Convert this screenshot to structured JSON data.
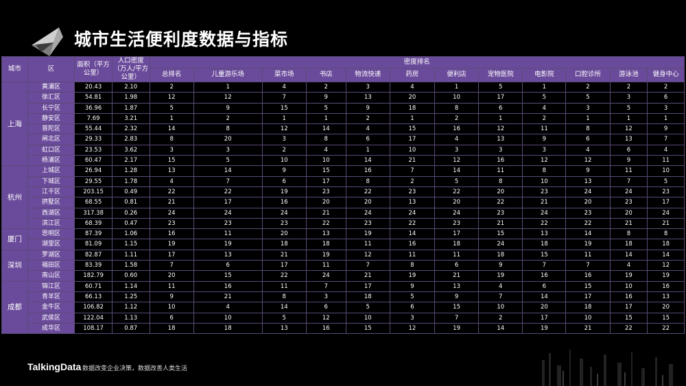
{
  "title": "城市生活便利度数据与指标",
  "header": {
    "city": "城市",
    "district": "区",
    "area": "面积（平方公里）",
    "density": "人口密度（万人/平方公里）",
    "rank_group": "密度排名",
    "rank_cols": [
      "总排名",
      "儿童游乐场",
      "菜市场",
      "书店",
      "物流快递",
      "药房",
      "便利店",
      "宠物医院",
      "电影院",
      "口腔诊所",
      "游泳池",
      "健身中心"
    ]
  },
  "groups": [
    {
      "city": "上海",
      "rows": [
        {
          "district": "黄浦区",
          "area": "20.43",
          "density": "2.10",
          "ranks": [
            "2",
            "1",
            "4",
            "2",
            "3",
            "4",
            "1",
            "5",
            "1",
            "2",
            "2",
            "2"
          ]
        },
        {
          "district": "徐汇区",
          "area": "54.81",
          "density": "1.98",
          "ranks": [
            "12",
            "12",
            "7",
            "9",
            "13",
            "20",
            "10",
            "17",
            "5",
            "5",
            "3",
            "6"
          ]
        },
        {
          "district": "长宁区",
          "area": "36.96",
          "density": "1.87",
          "ranks": [
            "5",
            "9",
            "15",
            "5",
            "9",
            "18",
            "8",
            "6",
            "4",
            "3",
            "5",
            "3"
          ]
        },
        {
          "district": "静安区",
          "area": "7.69",
          "density": "3.21",
          "ranks": [
            "1",
            "2",
            "1",
            "1",
            "2",
            "1",
            "2",
            "1",
            "2",
            "1",
            "1",
            "1"
          ]
        },
        {
          "district": "普陀区",
          "area": "55.44",
          "density": "2.32",
          "ranks": [
            "14",
            "8",
            "12",
            "14",
            "4",
            "15",
            "16",
            "12",
            "11",
            "8",
            "12",
            "9"
          ]
        },
        {
          "district": "闸北区",
          "area": "29.33",
          "density": "2.83",
          "ranks": [
            "8",
            "20",
            "3",
            "8",
            "6",
            "17",
            "4",
            "13",
            "9",
            "6",
            "13",
            "7"
          ]
        },
        {
          "district": "虹口区",
          "area": "23.53",
          "density": "3.62",
          "ranks": [
            "3",
            "3",
            "2",
            "4",
            "1",
            "10",
            "3",
            "3",
            "3",
            "4",
            "6",
            "4"
          ]
        },
        {
          "district": "杨浦区",
          "area": "60.47",
          "density": "2.17",
          "ranks": [
            "15",
            "5",
            "10",
            "10",
            "14",
            "21",
            "12",
            "16",
            "12",
            "12",
            "9",
            "11"
          ]
        }
      ]
    },
    {
      "city": "杭州",
      "rows": [
        {
          "district": "上城区",
          "area": "26.94",
          "density": "1.28",
          "ranks": [
            "13",
            "14",
            "9",
            "15",
            "16",
            "7",
            "14",
            "11",
            "8",
            "9",
            "11",
            "10"
          ]
        },
        {
          "district": "下城区",
          "area": "29.55",
          "density": "1.78",
          "ranks": [
            "4",
            "7",
            "6",
            "17",
            "8",
            "2",
            "5",
            "8",
            "10",
            "13",
            "7",
            "5"
          ]
        },
        {
          "district": "江干区",
          "area": "203.15",
          "density": "0.49",
          "ranks": [
            "22",
            "22",
            "19",
            "23",
            "22",
            "23",
            "22",
            "20",
            "23",
            "24",
            "24",
            "23"
          ]
        },
        {
          "district": "拱墅区",
          "area": "68.55",
          "density": "0.81",
          "ranks": [
            "21",
            "17",
            "16",
            "20",
            "20",
            "13",
            "20",
            "22",
            "21",
            "20",
            "23",
            "17"
          ]
        },
        {
          "district": "西湖区",
          "area": "317.38",
          "density": "0.26",
          "ranks": [
            "24",
            "24",
            "24",
            "21",
            "24",
            "24",
            "24",
            "23",
            "24",
            "23",
            "20",
            "24"
          ]
        },
        {
          "district": "滨江区",
          "area": "68.39",
          "density": "0.47",
          "ranks": [
            "23",
            "23",
            "23",
            "22",
            "23",
            "22",
            "23",
            "21",
            "22",
            "22",
            "21",
            "21"
          ]
        }
      ]
    },
    {
      "city": "厦门",
      "rows": [
        {
          "district": "思明区",
          "area": "87.39",
          "density": "1.06",
          "ranks": [
            "16",
            "11",
            "20",
            "13",
            "19",
            "14",
            "17",
            "15",
            "13",
            "14",
            "8",
            "8"
          ]
        },
        {
          "district": "湖里区",
          "area": "81.09",
          "density": "1.15",
          "ranks": [
            "19",
            "19",
            "18",
            "18",
            "11",
            "16",
            "18",
            "24",
            "18",
            "19",
            "18",
            "18"
          ]
        }
      ]
    },
    {
      "city": "深圳",
      "rows": [
        {
          "district": "罗湖区",
          "area": "82.87",
          "density": "1.11",
          "ranks": [
            "17",
            "13",
            "21",
            "19",
            "12",
            "11",
            "11",
            "18",
            "15",
            "11",
            "14",
            "14"
          ]
        },
        {
          "district": "福田区",
          "area": "83.39",
          "density": "1.58",
          "ranks": [
            "7",
            "6",
            "17",
            "11",
            "7",
            "8",
            "6",
            "9",
            "7",
            "7",
            "4",
            "12"
          ]
        },
        {
          "district": "南山区",
          "area": "182.79",
          "density": "0.60",
          "ranks": [
            "20",
            "15",
            "22",
            "24",
            "21",
            "19",
            "21",
            "19",
            "16",
            "16",
            "19",
            "19"
          ]
        }
      ]
    },
    {
      "city": "成都",
      "rows": [
        {
          "district": "锦江区",
          "area": "60.71",
          "density": "1.14",
          "ranks": [
            "11",
            "16",
            "11",
            "7",
            "17",
            "9",
            "13",
            "4",
            "6",
            "15",
            "10",
            "16"
          ]
        },
        {
          "district": "青羊区",
          "area": "66.13",
          "density": "1.25",
          "ranks": [
            "9",
            "21",
            "8",
            "3",
            "18",
            "5",
            "9",
            "7",
            "14",
            "17",
            "16",
            "13"
          ]
        },
        {
          "district": "金牛区",
          "area": "106.82",
          "density": "1.12",
          "ranks": [
            "10",
            "4",
            "14",
            "6",
            "5",
            "6",
            "15",
            "10",
            "20",
            "18",
            "17",
            "20"
          ]
        },
        {
          "district": "武侯区",
          "area": "122.04",
          "density": "1.13",
          "ranks": [
            "6",
            "10",
            "5",
            "12",
            "10",
            "3",
            "7",
            "2",
            "17",
            "10",
            "15",
            "15"
          ]
        },
        {
          "district": "成华区",
          "area": "108.17",
          "density": "0.87",
          "ranks": [
            "18",
            "18",
            "13",
            "16",
            "15",
            "12",
            "19",
            "14",
            "19",
            "21",
            "22",
            "22"
          ]
        }
      ]
    }
  ],
  "footer": {
    "brand": "TalkingData",
    "slogan": "数据改变企业决策，数据改善人类生活"
  }
}
